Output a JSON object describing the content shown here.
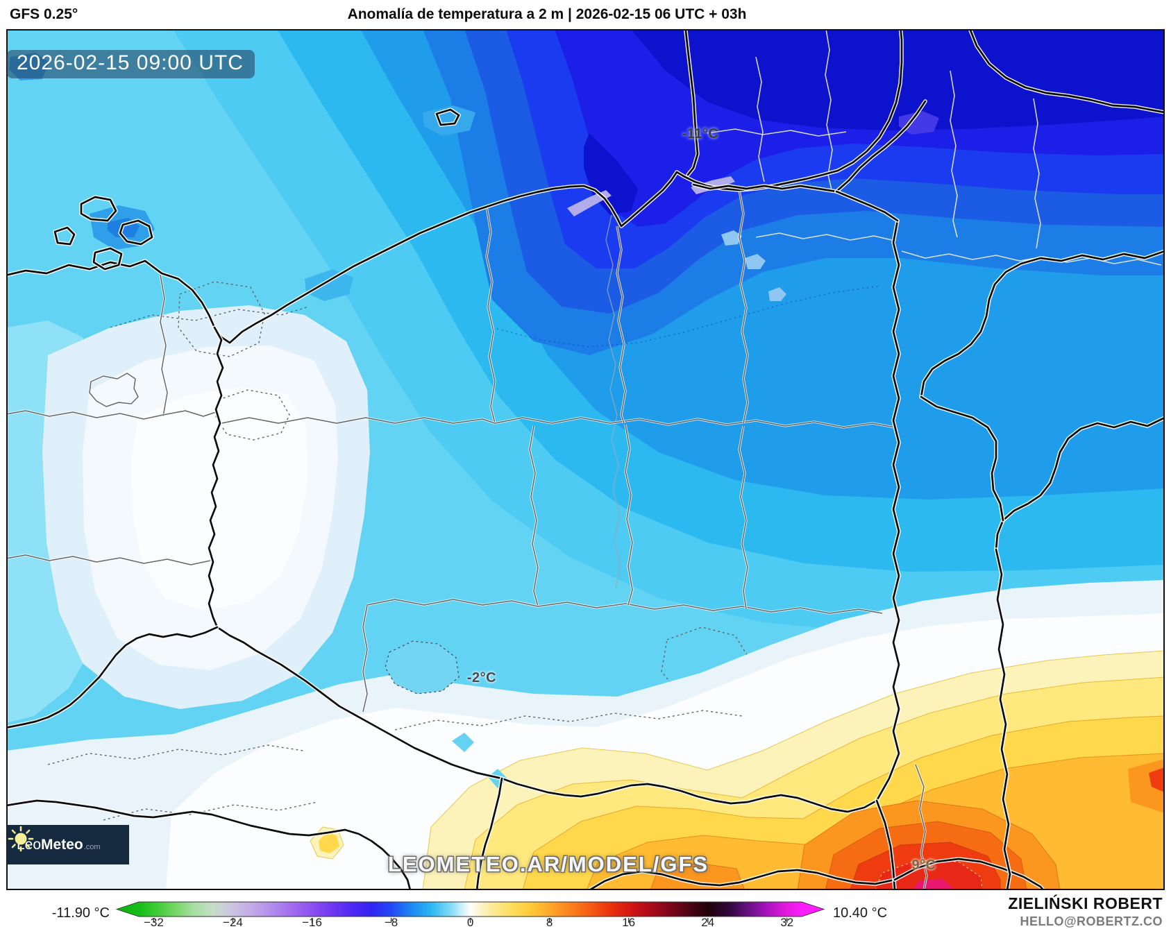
{
  "header": {
    "model_label": "GFS 0.25°",
    "title": "Anomalía de temperatura a 2 m | 2026-02-15 06 UTC + 03h"
  },
  "map": {
    "timestamp_badge": "2026-02-15 09:00 UTC",
    "watermark": "LEOMETEO.AR/MODEL/GFS",
    "point_labels": [
      {
        "text": "-11°C"
      },
      {
        "text": "-2°C"
      },
      {
        "text": "9°C"
      }
    ]
  },
  "logo": {
    "name_regular": "Leo",
    "name_bold": "Meteo",
    "domain_suffix": ".com"
  },
  "colorbar": {
    "min_label": "-11.90 °C",
    "max_label": "10.40 °C",
    "ticks": [
      "−32",
      "−24",
      "−16",
      "−8",
      "0",
      "8",
      "16",
      "24",
      "32"
    ]
  },
  "credits": {
    "author": "ZIELIŃSKI ROBERT",
    "contact": "HELLO@ROBERTZ.CO"
  },
  "colors": {
    "coldest": "#0b10c8",
    "cold": "#1d7de7",
    "cool": "#62d3f3",
    "neutral": "#ffffff",
    "warm": "#ffd84b",
    "hot": "#e82817",
    "extreme_hot": "#e8176f",
    "logo_bg": "#152a3f",
    "badge_bg": "rgba(40,75,105,0.62)"
  }
}
